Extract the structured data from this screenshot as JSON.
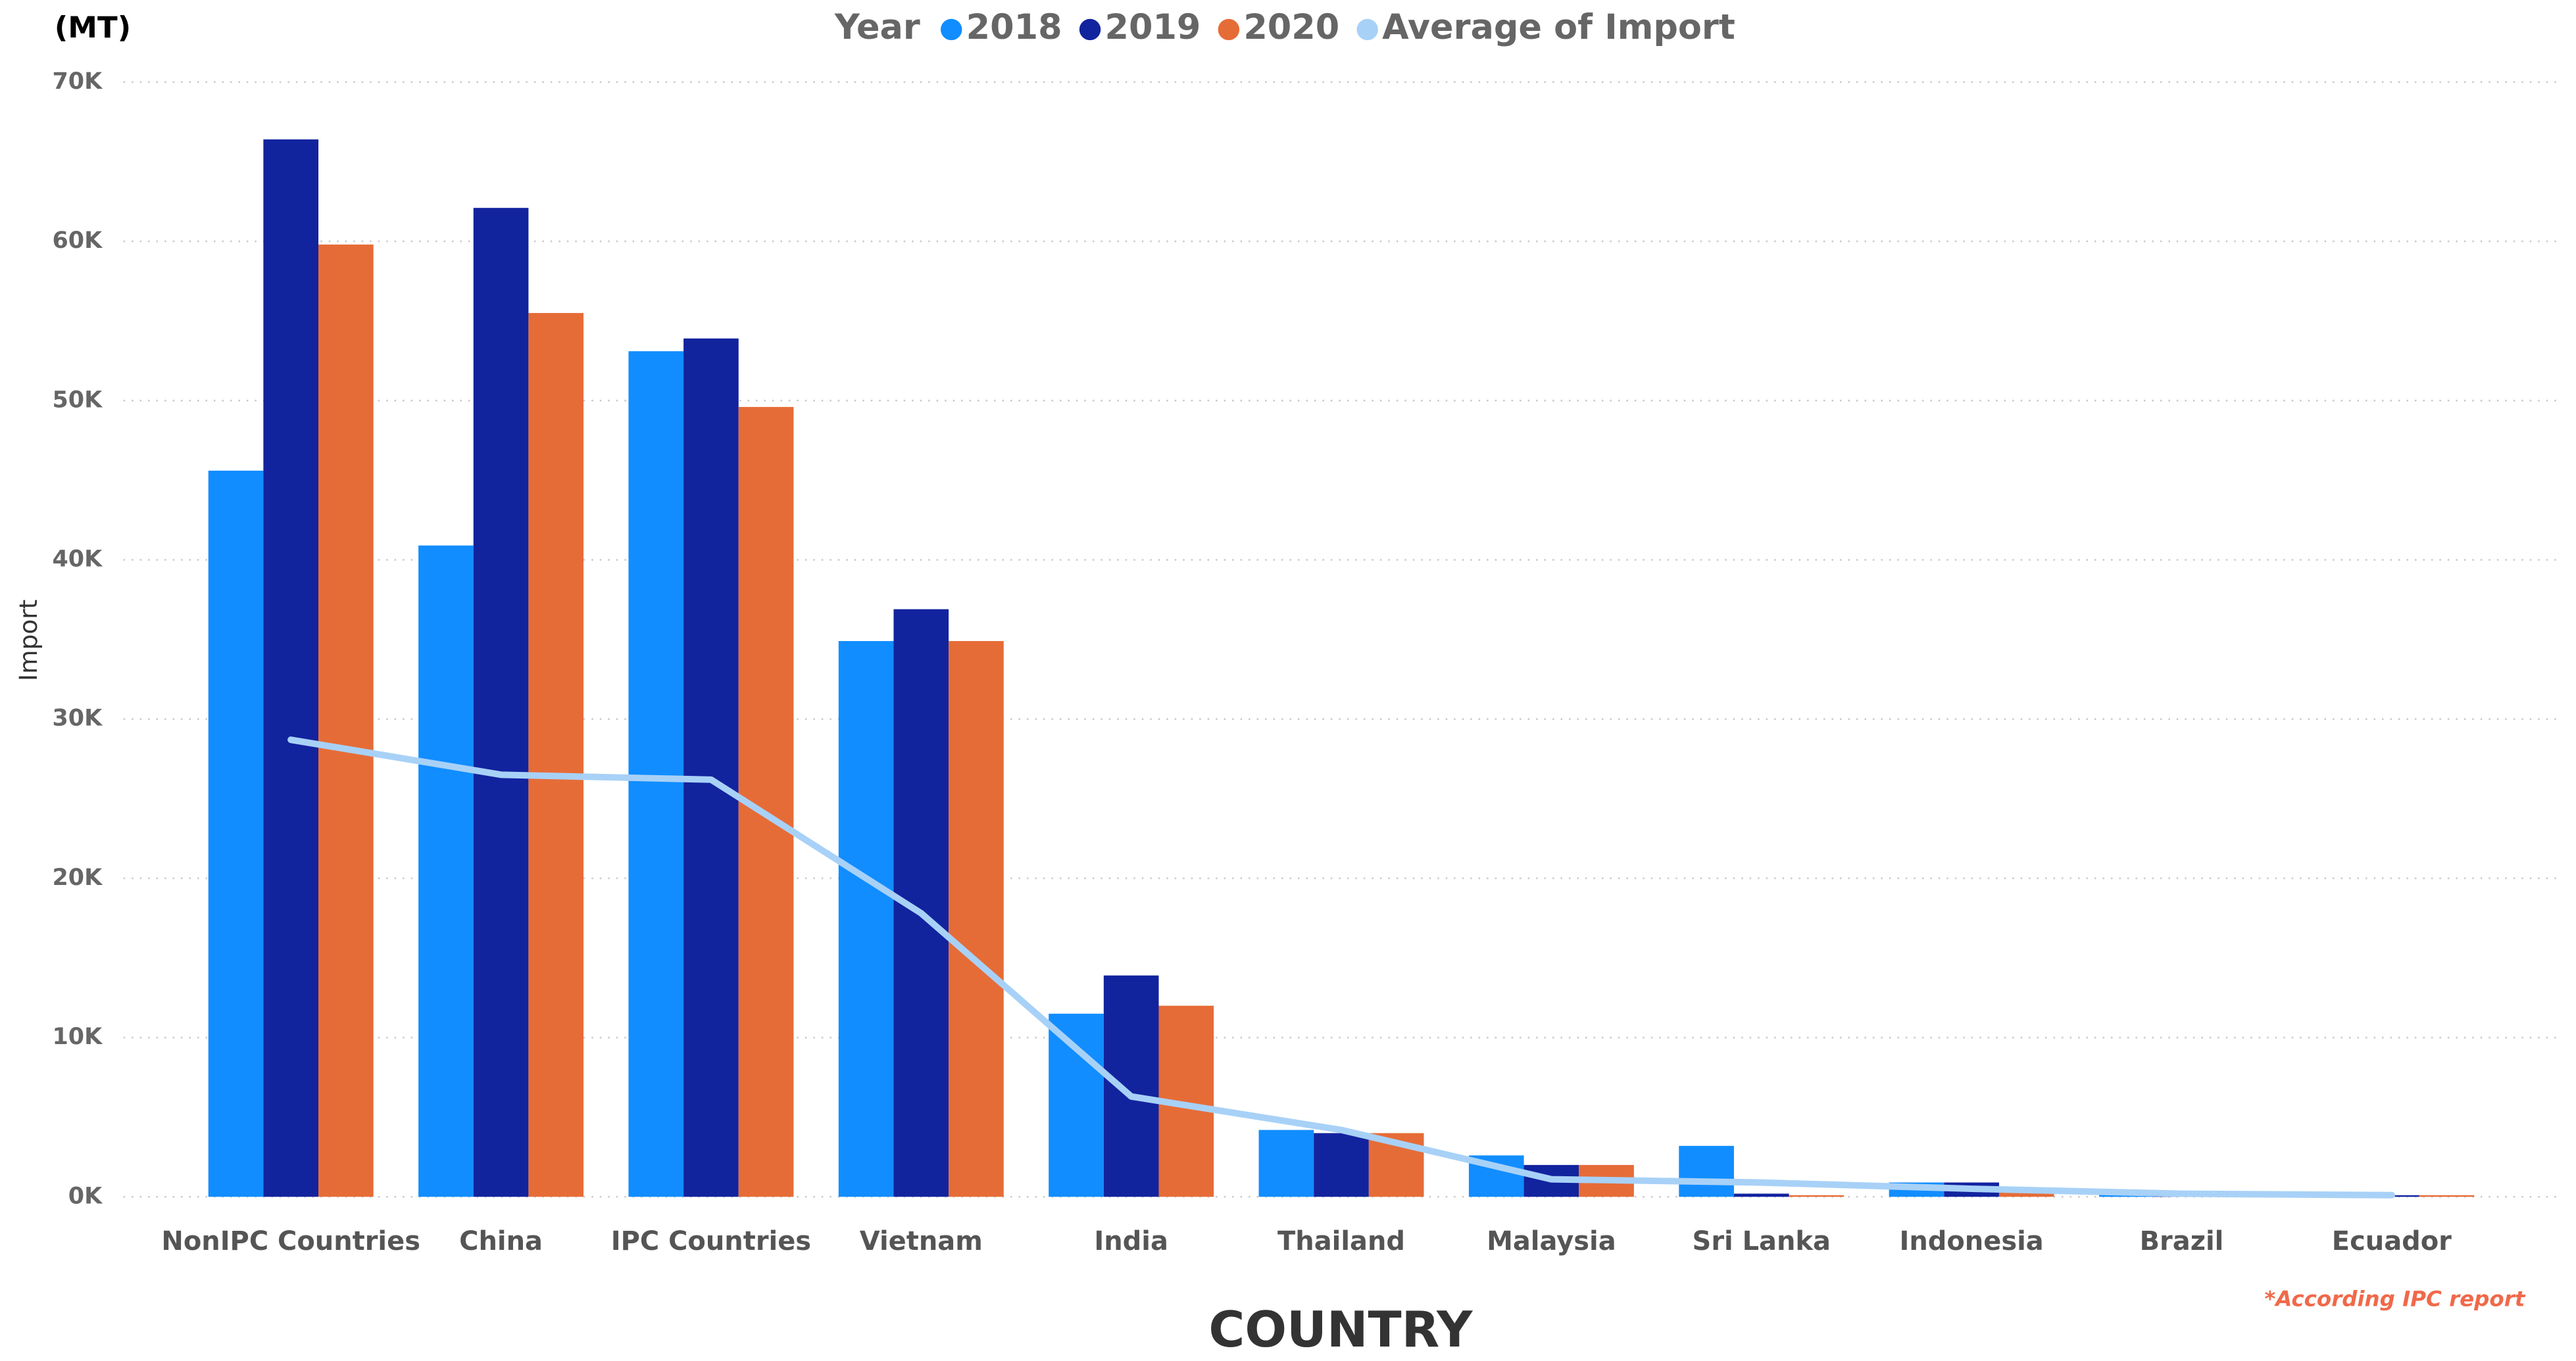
{
  "chart_data": {
    "type": "bar",
    "unit_label": "(MT)",
    "legend_title": "Year",
    "y_label": "Import",
    "x_label": "COUNTRY",
    "note": "*According IPC report",
    "categories": [
      "NonIPC Countries",
      "China",
      "IPC Countries",
      "Vietnam",
      "India",
      "Thailand",
      "Malaysia",
      "Sri Lanka",
      "Indonesia",
      "Brazil",
      "Ecuador"
    ],
    "series": [
      {
        "name": "2018",
        "color": "#118DFF",
        "values": [
          45600,
          40900,
          53100,
          34900,
          11500,
          4200,
          2600,
          3200,
          900,
          300,
          100
        ]
      },
      {
        "name": "2019",
        "color": "#12239E",
        "values": [
          66400,
          62100,
          53900,
          36900,
          13900,
          4000,
          2000,
          200,
          900,
          300,
          100
        ]
      },
      {
        "name": "2020",
        "color": "#E66C37",
        "values": [
          59800,
          55500,
          49600,
          34900,
          12000,
          4000,
          2000,
          100,
          400,
          200,
          100
        ]
      },
      {
        "name": "Average of Import",
        "type": "line",
        "color": "#A8D1F7",
        "values": [
          28700,
          26500,
          26200,
          17800,
          6300,
          4200,
          1100,
          900,
          500,
          200,
          100
        ]
      }
    ],
    "ylim": [
      0,
      70000
    ],
    "yticks": [
      {
        "value": 0,
        "label": "0K"
      },
      {
        "value": 10000,
        "label": "10K"
      },
      {
        "value": 20000,
        "label": "20K"
      },
      {
        "value": 30000,
        "label": "30K"
      },
      {
        "value": 40000,
        "label": "40K"
      },
      {
        "value": 50000,
        "label": "50K"
      },
      {
        "value": 60000,
        "label": "60K"
      },
      {
        "value": 70000,
        "label": "70K"
      }
    ],
    "grid": true
  }
}
